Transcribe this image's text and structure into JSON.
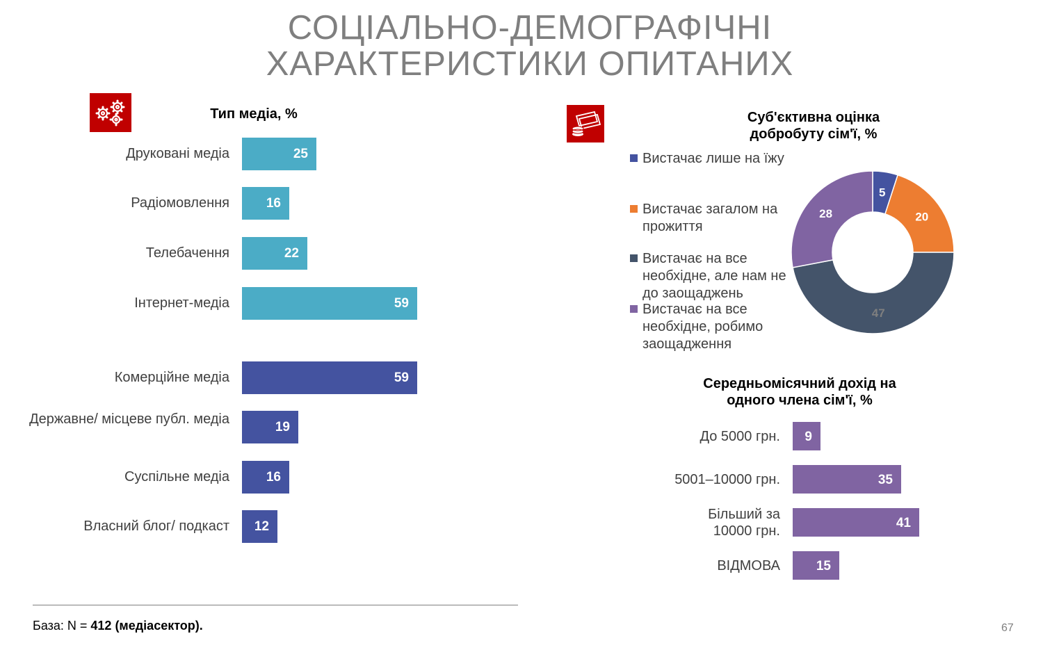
{
  "slide": {
    "title_line1": "СОЦІАЛЬНО-ДЕМОГРАФІЧНІ",
    "title_line2": "ХАРАКТЕРИСТИКИ ОПИТАНИХ",
    "footer_prefix": "База: N = ",
    "footer_bold": "412 (медіасектор).",
    "page_number": "67",
    "icons": [
      "gears-icon",
      "money-icon"
    ],
    "accent_color": "#c00000"
  },
  "chart_data": [
    {
      "type": "bar",
      "orientation": "horizontal",
      "title": "Тип медіа, %",
      "categories": [
        "Друковані медіа",
        "Радіомовлення",
        "Телебачення",
        "Інтернет-медіа",
        "Комерційне медіа",
        "Державне/ місцеве публ. медіа",
        "Суспільне медіа",
        "Власний блог/ подкаст"
      ],
      "values": [
        25,
        16,
        22,
        59,
        59,
        19,
        16,
        12
      ],
      "colors": [
        "#4bacc6",
        "#4bacc6",
        "#4bacc6",
        "#4bacc6",
        "#4453a0",
        "#4453a0",
        "#4453a0",
        "#4453a0"
      ]
    },
    {
      "type": "pie",
      "donut": true,
      "title": "Суб'єктивна оцінка добробуту сім'ї, %",
      "legend_position": "left",
      "labels": [
        "Вистачає лише на їжу",
        "Вистачає загалом на прожиття",
        "Вистачає на все необхідне, але нам не до заощаджень",
        "Вистачає на все необхідне, робимо заощадження"
      ],
      "values": [
        5,
        20,
        47,
        28
      ],
      "colors": [
        "#4453a0",
        "#ed7d31",
        "#44546a",
        "#8064a2"
      ],
      "label_colors": [
        "#ffffff",
        "#ffffff",
        "#7f7f7f",
        "#ffffff"
      ]
    },
    {
      "type": "bar",
      "orientation": "horizontal",
      "title": "Середньомісячний дохід на одного члена сім'ї, %",
      "categories": [
        "До 5000 грн.",
        "5001–10000 грн.",
        "Більший за 10000 грн.",
        "ВІДМОВА"
      ],
      "values": [
        9,
        35,
        41,
        15
      ],
      "color": "#8064a2"
    }
  ]
}
